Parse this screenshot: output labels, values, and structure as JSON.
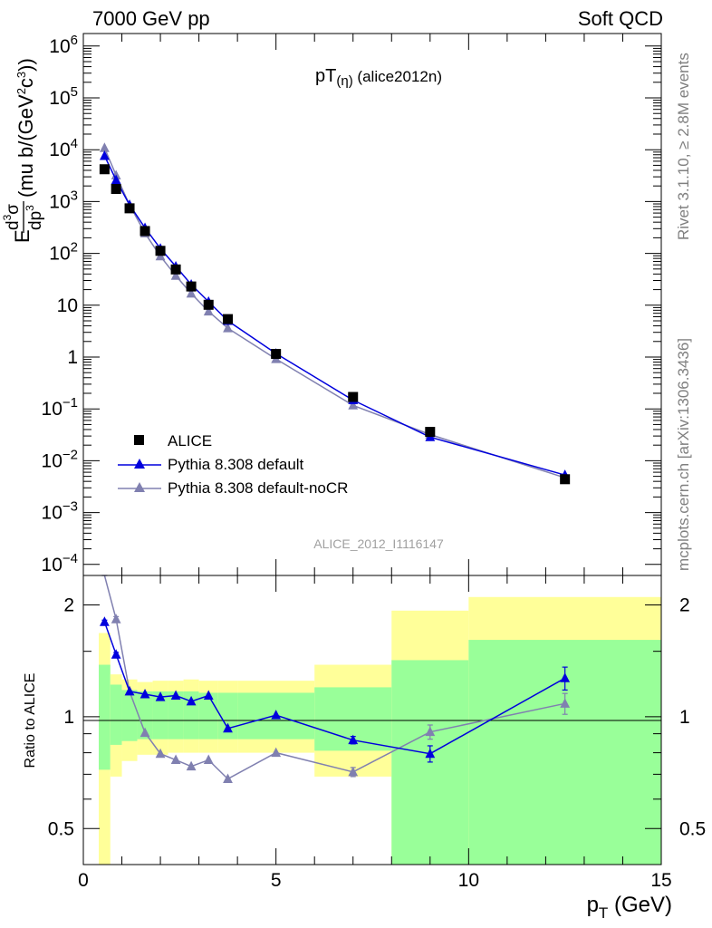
{
  "header": {
    "left": "7000 GeV pp",
    "right": "Soft QCD"
  },
  "watermark": "ALICE_2012_I1116147",
  "side_labels": {
    "rivet": "Rivet 3.1.10, ≥ 2.8M events",
    "mcplots": "mcplots.cern.ch [arXiv:1306.3436]"
  },
  "colors": {
    "data": "#000000",
    "default": "#0000dd",
    "noCR": "#8080b0",
    "band_inner": "#99ff99",
    "band_outer": "#ffff99"
  },
  "chart_data": [
    {
      "type": "scatter",
      "title": "pT(η) (alice2012n)",
      "title_main": "pT",
      "title_sub": "(η)",
      "title_tail": " (alice2012n)",
      "ylabel": "E d³σ/dp³ (mu b/(GeV²c³))",
      "xlim": [
        0,
        15
      ],
      "ylim": [
        7e-05,
        2000000
      ],
      "yscale": "log",
      "y_tick_labels": [
        "10⁻⁴",
        "10⁻³",
        "10⁻²",
        "10⁻¹",
        "1",
        "10",
        "10²",
        "10³",
        "10⁴",
        "10⁵",
        "10⁶"
      ],
      "legend_position": "bottom-left",
      "series": [
        {
          "name": "ALICE",
          "marker": "square",
          "x": [
            0.55,
            0.85,
            1.2,
            1.6,
            2.0,
            2.4,
            2.8,
            3.25,
            3.75,
            5.0,
            7.0,
            9.0,
            12.5
          ],
          "y": [
            4200,
            1750,
            740,
            270,
            112,
            49,
            23,
            10.2,
            5.4,
            1.15,
            0.17,
            0.036,
            0.0044
          ]
        },
        {
          "name": "Pythia 8.308 default",
          "marker": "triangle",
          "x": [
            0.55,
            0.85,
            1.2,
            1.6,
            2.0,
            2.4,
            2.8,
            3.25,
            3.75,
            5.0,
            7.0,
            9.0,
            12.5
          ],
          "y": [
            7600,
            2600,
            860,
            310,
            124,
            56,
            25,
            11.7,
            5.0,
            1.17,
            0.148,
            0.0286,
            0.0053
          ]
        },
        {
          "name": "Pythia 8.308 default-noCR",
          "marker": "triangle",
          "x": [
            0.55,
            0.85,
            1.2,
            1.6,
            2.0,
            2.4,
            2.8,
            3.25,
            3.75,
            5.0,
            7.0,
            9.0,
            12.5
          ],
          "y": [
            10800,
            3200,
            860,
            245,
            88,
            37,
            16.8,
            7.6,
            3.6,
            0.92,
            0.117,
            0.032,
            0.0047
          ]
        }
      ]
    },
    {
      "type": "line",
      "ylabel": "Ratio to ALICE",
      "xlabel": "p_T (GeV)",
      "xlabel_main": "p",
      "xlabel_sub": "T",
      "xlabel_tail": " (GeV)",
      "xlim": [
        0,
        15
      ],
      "ylim": [
        0.4,
        2.4
      ],
      "yscale": "log",
      "x_tick_labels": [
        "0",
        "5",
        "10",
        "15"
      ],
      "y_tick_labels": [
        "0.5",
        "1",
        "2"
      ],
      "uncertainty_bands": {
        "edges": [
          0.4,
          0.7,
          1.0,
          1.4,
          1.8,
          2.2,
          2.6,
          3.0,
          3.5,
          4.0,
          6.0,
          8.0,
          10.0,
          15.0
        ],
        "inner_low": [
          0.72,
          0.84,
          0.86,
          0.87,
          0.87,
          0.87,
          0.87,
          0.87,
          0.87,
          0.87,
          0.81,
          0.33,
          0.36
        ],
        "inner_high": [
          1.38,
          1.22,
          1.18,
          1.17,
          1.17,
          1.17,
          1.17,
          1.16,
          1.16,
          1.16,
          1.2,
          1.42,
          1.61
        ],
        "outer_low": [
          0.38,
          0.69,
          0.76,
          0.79,
          0.79,
          0.8,
          0.8,
          0.8,
          0.8,
          0.8,
          0.69,
          0.38,
          0.38
        ],
        "outer_high": [
          1.68,
          1.3,
          1.26,
          1.24,
          1.25,
          1.25,
          1.26,
          1.25,
          1.25,
          1.25,
          1.38,
          1.93,
          2.1
        ]
      },
      "series": [
        {
          "name": "Pythia 8.308 default",
          "x": [
            0.55,
            0.85,
            1.2,
            1.6,
            2.0,
            2.4,
            2.8,
            3.25,
            3.75,
            5.0,
            7.0,
            9.0,
            12.5
          ],
          "y": [
            1.8,
            1.47,
            1.17,
            1.15,
            1.13,
            1.14,
            1.1,
            1.14,
            0.93,
            1.01,
            0.865,
            0.795,
            1.27
          ],
          "err": [
            0.02,
            0.02,
            0.01,
            0.01,
            0.01,
            0.01,
            0.01,
            0.01,
            0.01,
            0.01,
            0.02,
            0.04,
            0.09
          ]
        },
        {
          "name": "Pythia 8.308 default-noCR",
          "x": [
            0.55,
            0.85,
            1.2,
            1.6,
            2.0,
            2.4,
            2.8,
            3.25,
            3.75,
            5.0,
            7.0,
            9.0,
            12.5
          ],
          "y": [
            2.55,
            1.83,
            1.17,
            0.905,
            0.795,
            0.765,
            0.735,
            0.765,
            0.68,
            0.8,
            0.71,
            0.91,
            1.085
          ],
          "err": [
            0.03,
            0.03,
            0.01,
            0.01,
            0.01,
            0.01,
            0.01,
            0.01,
            0.01,
            0.01,
            0.02,
            0.04,
            0.07
          ]
        }
      ]
    }
  ]
}
